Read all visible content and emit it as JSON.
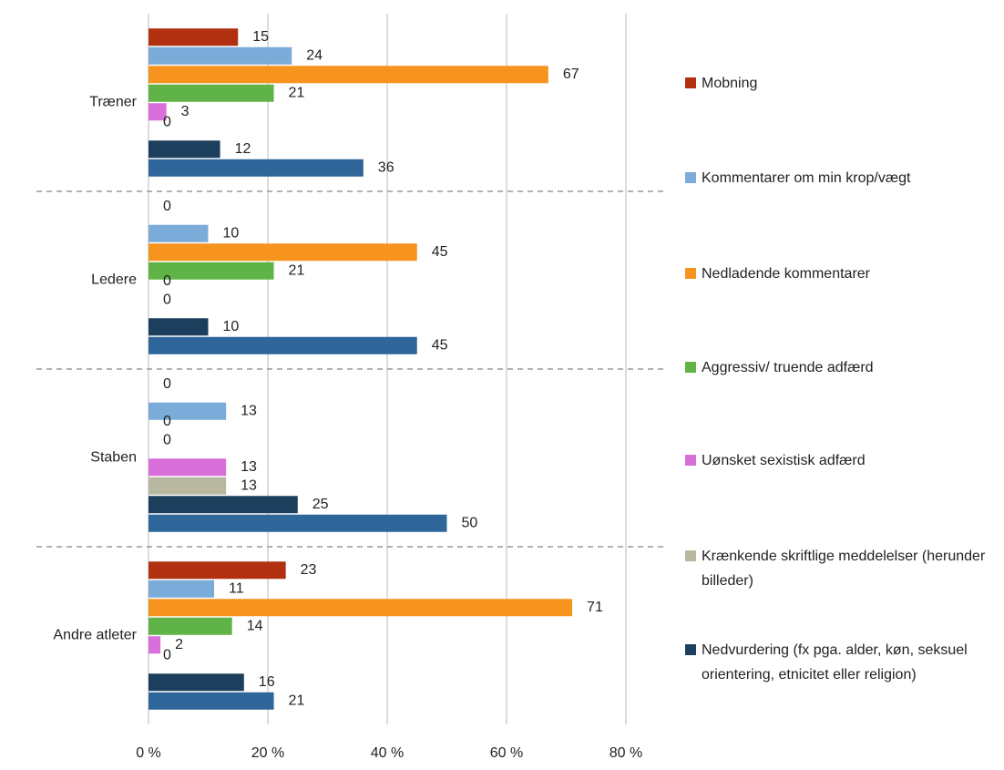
{
  "chart_data": {
    "type": "barh",
    "categories": [
      "Træner",
      "Ledere",
      "Staben",
      "Andre atleter"
    ],
    "series": [
      {
        "name": "Mobning",
        "color": "#b03010",
        "values": [
          15,
          0,
          0,
          23
        ]
      },
      {
        "name": "Kommentarer om min krop/vægt",
        "color": "#7aabd9",
        "values": [
          24,
          10,
          13,
          11
        ]
      },
      {
        "name": "Nedladende kommentarer",
        "color": "#f7941d",
        "values": [
          67,
          45,
          0,
          71
        ]
      },
      {
        "name": "Aggressiv/ truende adfærd",
        "color": "#5fb347",
        "values": [
          21,
          21,
          0,
          14
        ]
      },
      {
        "name": "Uønsket sexistisk adfærd",
        "color": "#d96fd9",
        "values": [
          3,
          0,
          13,
          2
        ]
      },
      {
        "name": "Krænkende skriftlige meddelelser (herunder billeder)",
        "color": "#b8b8a0",
        "values": [
          0,
          0,
          13,
          0
        ]
      },
      {
        "name": "Nedvurdering (fx pga. alder, køn, seksuel orientering, etnicitet eller religion)",
        "color": "#1b3f5c",
        "values": [
          12,
          10,
          25,
          16
        ]
      },
      {
        "color": "#2e6699",
        "values": [
          36,
          45,
          50,
          21
        ]
      }
    ],
    "xlim": [
      0,
      80
    ],
    "xticks": [
      {
        "value": 0,
        "label": "0 %"
      },
      {
        "value": 20,
        "label": "20 %"
      },
      {
        "value": 40,
        "label": "40 %"
      },
      {
        "value": 60,
        "label": "60 %"
      },
      {
        "value": 80,
        "label": "80 %"
      }
    ],
    "grid": true
  }
}
